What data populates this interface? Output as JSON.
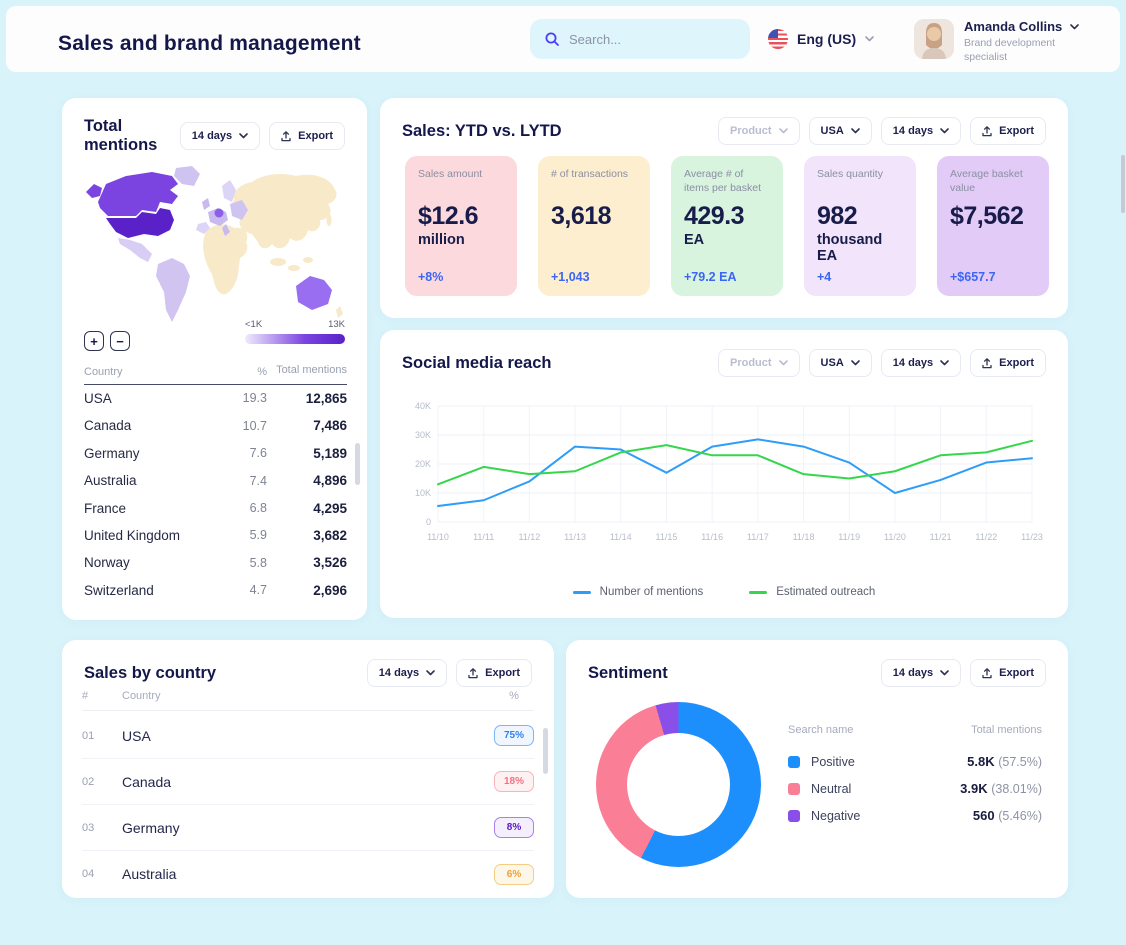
{
  "header": {
    "title": "Sales and brand management",
    "search_placeholder": "Search...",
    "language_label": "Eng (US)",
    "user_name": "Amanda Collins",
    "user_role": "Brand development specialist"
  },
  "buttons": {
    "period": "14 days",
    "export": "Export",
    "product": "Product",
    "region": "USA"
  },
  "colors": {
    "page_bg": "#d8f3fa",
    "accent_blue": "#3b66f3",
    "navy_text": "#14174a"
  },
  "cards": {
    "total_mentions": {
      "title": "Total mentions",
      "zoom_in": "+",
      "zoom_out": "−",
      "map_legend_min": "<1K",
      "map_legend_max": "13K",
      "map_colors": {
        "base": "#f8e9c9",
        "usa": "#5a21c8",
        "canada": "#7b43e0",
        "greenland": "#cfc3f2",
        "mexico": "#d8cdf4",
        "south_america": "#d2c4f1",
        "europe_light": "#c8baee",
        "europe_lighter": "#ddd5f6",
        "europe_east": "#cfc3f2",
        "europe_dark": "#8d5fe8",
        "australia": "#9a6ef0",
        "gradient_from": "#efeafc"
      },
      "table_headers": {
        "country": "Country",
        "pct": "%",
        "mentions": "Total mentions"
      },
      "rows": [
        {
          "country": "USA",
          "pct": "19.3",
          "mentions": "12,865"
        },
        {
          "country": "Canada",
          "pct": "10.7",
          "mentions": "7,486"
        },
        {
          "country": "Germany",
          "pct": "7.6",
          "mentions": "5,189"
        },
        {
          "country": "Australia",
          "pct": "7.4",
          "mentions": "4,896"
        },
        {
          "country": "France",
          "pct": "6.8",
          "mentions": "4,295"
        },
        {
          "country": "United Kingdom",
          "pct": "5.9",
          "mentions": "3,682"
        },
        {
          "country": "Norway",
          "pct": "5.8",
          "mentions": "3,526"
        },
        {
          "country": "Switzerland",
          "pct": "4.7",
          "mentions": "2,696"
        }
      ]
    },
    "sales_ytd": {
      "title": "Sales: YTD vs. LYTD",
      "metrics": [
        {
          "label": "Sales amount",
          "value": "$12.6",
          "unit": "million",
          "delta": "+8%",
          "bg": "#fbd9dd"
        },
        {
          "label": "# of transactions",
          "value": "3,618",
          "unit": "",
          "delta": "+1,043",
          "bg": "#fdeecf"
        },
        {
          "label": "Average # of items per basket",
          "value": "429.3",
          "unit": "EA",
          "delta": "+79.2 EA",
          "bg": "#d8f3de"
        },
        {
          "label": "Sales quantity",
          "value": "982",
          "unit": "thousand EA",
          "delta": "+4",
          "bg": "#f2e4fa"
        },
        {
          "label": "Average basket value",
          "value": "$7,562",
          "unit": "",
          "delta": "+$657.7",
          "bg": "#e3cbf8"
        }
      ]
    },
    "social": {
      "title": "Social media reach"
    },
    "sales_by_country": {
      "title": "Sales by country",
      "headers": {
        "rank": "#",
        "country": "Country",
        "pct": "%"
      },
      "rows": [
        {
          "rank": "01",
          "country": "USA",
          "pct": 75,
          "pct_label": "75%",
          "color": "#2d80f2",
          "track": "#d5e6fc",
          "badge_border": "#7fb4f7",
          "badge_bg": "#eff6ff"
        },
        {
          "rank": "02",
          "country": "Canada",
          "pct": 18,
          "pct_label": "18%",
          "color": "#f4707f",
          "track": "#fcdadd",
          "badge_border": "#f9b3bb",
          "badge_bg": "#fef1f2"
        },
        {
          "rank": "03",
          "country": "Germany",
          "pct": 8,
          "pct_label": "8%",
          "color": "#5a18c0",
          "track": "#ded2f4",
          "badge_border": "#a77ff0",
          "badge_bg": "#f5effd"
        },
        {
          "rank": "04",
          "country": "Australia",
          "pct": 6,
          "pct_label": "6%",
          "color": "#efa12f",
          "track": "#f8e2b8",
          "badge_border": "#f3cd85",
          "badge_bg": "#fdf7ea"
        }
      ]
    },
    "sentiment": {
      "title": "Sentiment",
      "legend_headers": {
        "name": "Search name",
        "mentions": "Total mentions"
      },
      "rows": [
        {
          "label": "Positive",
          "value": "5.8K",
          "pct": "(57.5%)",
          "color": "#1d8ffd"
        },
        {
          "label": "Neutral",
          "value": "3.9K",
          "pct": "(38.01%)",
          "color": "#fa7e96"
        },
        {
          "label": "Negative",
          "value": "560",
          "pct": "(5.46%)",
          "color": "#8a4fe8"
        }
      ]
    }
  },
  "chart_data": [
    {
      "id": "social_media_reach",
      "type": "line",
      "title": "Social media reach",
      "x": [
        "11/10",
        "11/11",
        "11/12",
        "11/13",
        "11/14",
        "11/15",
        "11/16",
        "11/17",
        "11/18",
        "11/19",
        "11/20",
        "11/21",
        "11/22",
        "11/23"
      ],
      "series": [
        {
          "name": "Number of mentions",
          "color": "#2e9df7",
          "values": [
            5500,
            7500,
            14000,
            26000,
            25000,
            17000,
            26000,
            28500,
            26000,
            20500,
            10000,
            14500,
            20500,
            22000
          ]
        },
        {
          "name": "Estimated outreach",
          "color": "#35d64b",
          "values": [
            13000,
            19000,
            16500,
            17500,
            24000,
            26500,
            23000,
            23000,
            16500,
            15000,
            17500,
            23000,
            24000,
            28000
          ]
        }
      ],
      "ylim": [
        0,
        40000
      ],
      "yticks": [
        {
          "value": 0,
          "label": "0"
        },
        {
          "value": 10000,
          "label": "10K"
        },
        {
          "value": 20000,
          "label": "20K"
        },
        {
          "value": 30000,
          "label": "30K"
        },
        {
          "value": 40000,
          "label": "40K"
        }
      ],
      "grid": true,
      "legend_position": "bottom"
    },
    {
      "id": "sentiment_donut",
      "type": "pie",
      "title": "Sentiment",
      "donut": true,
      "slices": [
        {
          "label": "Positive",
          "value": 5800,
          "pct": 57.5,
          "color": "#1d8ffd"
        },
        {
          "label": "Neutral",
          "value": 3900,
          "pct": 38.01,
          "color": "#fa7e96"
        },
        {
          "label": "Negative",
          "value": 560,
          "pct": 5.46,
          "color": "#8a4fe8"
        }
      ]
    },
    {
      "id": "sales_by_country_bars",
      "type": "bar",
      "title": "Sales by country",
      "categories": [
        "USA",
        "Canada",
        "Germany",
        "Australia"
      ],
      "values": [
        75,
        18,
        8,
        6
      ],
      "unit": "%"
    },
    {
      "id": "total_mentions_map",
      "type": "heatmap",
      "title": "Total mentions by country (choropleth)",
      "scale": {
        "min_label": "<1K",
        "max_label": "13K"
      },
      "categories": [
        "USA",
        "Canada",
        "Germany",
        "Australia",
        "France",
        "United Kingdom",
        "Norway",
        "Switzerland"
      ],
      "values": [
        12865,
        7486,
        5189,
        4896,
        4295,
        3682,
        3526,
        2696
      ]
    }
  ]
}
